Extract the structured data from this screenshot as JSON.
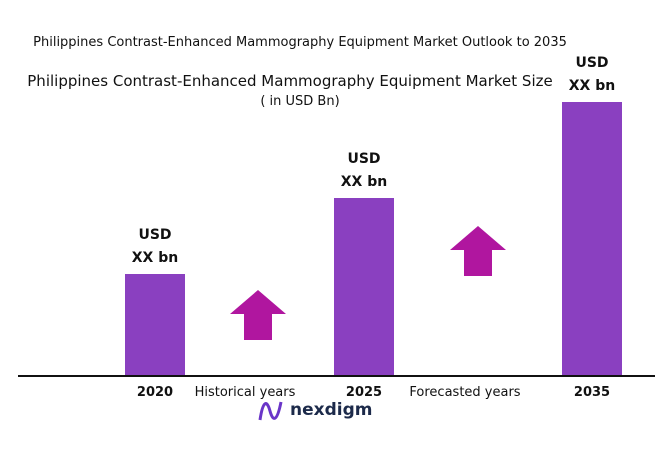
{
  "chart_data": {
    "type": "bar",
    "title": "Philippines Contrast-Enhanced Mammography Equipment Market Outlook to 2035",
    "subtitle": "Philippines Contrast-Enhanced Mammography Equipment Market Size",
    "unit_label": "( in USD Bn)",
    "categories": [
      "2020",
      "2025",
      "2035"
    ],
    "values": [
      1,
      1.75,
      2.7
    ],
    "value_labels": [
      [
        "USD",
        "XX bn"
      ],
      [
        "USD",
        "XX bn"
      ],
      [
        "USD",
        "XX bn"
      ]
    ],
    "color": "#8a40c0",
    "annotations": [
      "Historical years",
      "Forecasted years"
    ],
    "logo": "nexdigm"
  }
}
